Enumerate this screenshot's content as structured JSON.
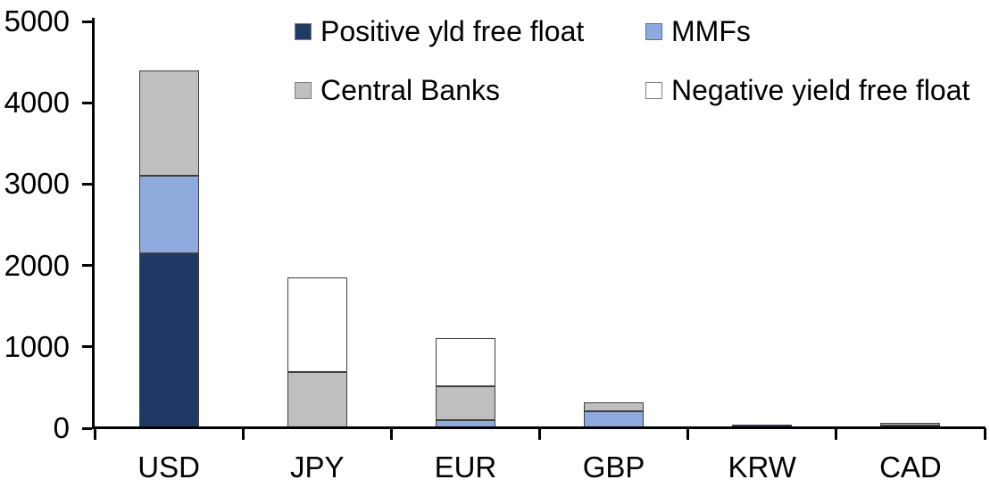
{
  "chart_data": {
    "type": "bar",
    "stacked": true,
    "title": "",
    "categories": [
      "USD",
      "JPY",
      "EUR",
      "GBP",
      "KRW",
      "CAD"
    ],
    "series": [
      {
        "name": "Positive yld free float",
        "color": "#1F3864",
        "marker_border": "#7F7F7F",
        "values": [
          2150,
          0,
          0,
          0,
          40,
          35
        ]
      },
      {
        "name": "MMFs",
        "color": "#8FAADC",
        "marker_border": "#4472C4",
        "values": [
          950,
          0,
          100,
          210,
          0,
          0
        ]
      },
      {
        "name": "Central Banks",
        "color": "#BFBFBF",
        "marker_border": "#7F7F7F",
        "values": [
          1300,
          690,
          420,
          110,
          0,
          35
        ]
      },
      {
        "name": "Negative yield free float",
        "color": "#FFFFFF",
        "marker_border": "#7F7F7F",
        "values": [
          0,
          1160,
          590,
          0,
          0,
          0
        ]
      }
    ],
    "xlabel": "",
    "ylabel": "",
    "ylim": [
      0,
      5000
    ],
    "y_ticks": [
      "0",
      "1000",
      "2000",
      "3000",
      "4000",
      "5000"
    ],
    "legend_position": "top",
    "grid": false,
    "bar_border_color": "#404040",
    "axis_color": "#000000"
  }
}
